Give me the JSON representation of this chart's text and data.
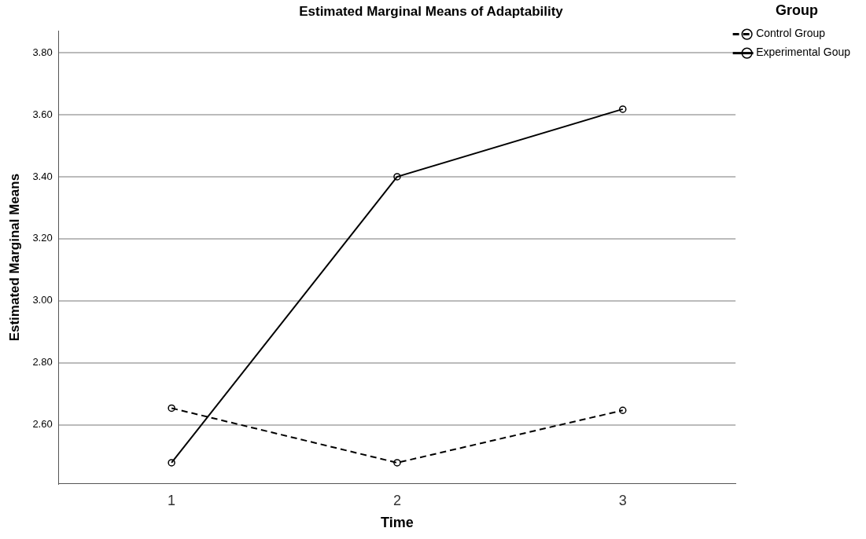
{
  "chart_data": {
    "type": "line",
    "title": "Estimated Marginal Means of Adaptability",
    "xlabel": "Time",
    "ylabel": "Estimated Marginal Means",
    "legend_title": "Group",
    "categories": [
      "1",
      "2",
      "3"
    ],
    "series": [
      {
        "name": "Control Group",
        "color": "#000000",
        "line_style": "dashed",
        "values": [
          2.654,
          2.478,
          2.647
        ]
      },
      {
        "name": "Experimental Goup",
        "color": "#000000",
        "line_style": "solid",
        "values": [
          2.478,
          3.4,
          3.618
        ]
      }
    ],
    "ylim": [
      2.41,
      3.87
    ],
    "yticks": [
      {
        "value": 2.6,
        "label": "2.60"
      },
      {
        "value": 2.8,
        "label": "2.80"
      },
      {
        "value": 3.0,
        "label": "3.00"
      },
      {
        "value": 3.2,
        "label": "3.20"
      },
      {
        "value": 3.4,
        "label": "3.40"
      },
      {
        "value": 3.6,
        "label": "3.60"
      },
      {
        "value": 3.8,
        "label": "3.80"
      }
    ],
    "grid": "y",
    "legend": "top right",
    "marker": "circle"
  }
}
